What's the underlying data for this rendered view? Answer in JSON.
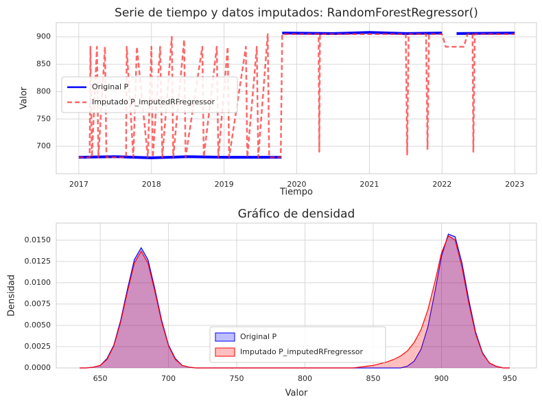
{
  "chart_data": [
    {
      "type": "line",
      "title": "Serie de tiempo y datos imputados: RandomForestRegressor()",
      "xlabel": "Tiempo",
      "ylabel": "Valor",
      "xlim": [
        2016.69,
        2023.3
      ],
      "xticks": [
        2017,
        2018,
        2019,
        2020,
        2021,
        2022,
        2023
      ],
      "ylim": [
        650,
        926
      ],
      "yticks": [
        700,
        750,
        800,
        850,
        900
      ],
      "grid": true,
      "legend": "center left",
      "series": [
        {
          "name": "Original P",
          "color": "#0000ff",
          "dash": "solid",
          "x": [
            2017.0,
            2017.5,
            2018.0,
            2018.5,
            2019.0,
            2019.79,
            2019.795,
            2019.8,
            2020.5,
            2021.0,
            2021.5,
            2022.0,
            2022.1,
            2022.2,
            2023.0
          ],
          "values": [
            680,
            681,
            679,
            681,
            680,
            680,
            null,
            907,
            906,
            908,
            906,
            907,
            null,
            906,
            907
          ]
        },
        {
          "name": "Imputado P_imputedRFregressor",
          "color": "#ff3333",
          "dash": "dashed",
          "x": [
            2017.0,
            2017.15,
            2017.16,
            2017.18,
            2017.25,
            2017.27,
            2017.36,
            2017.38,
            2017.65,
            2017.66,
            2017.75,
            2017.8,
            2017.95,
            2018.0,
            2018.02,
            2018.12,
            2018.15,
            2018.28,
            2018.3,
            2018.45,
            2018.47,
            2018.7,
            2018.72,
            2018.9,
            2018.92,
            2019.05,
            2019.07,
            2019.3,
            2019.32,
            2019.45,
            2019.47,
            2019.6,
            2019.62,
            2019.78,
            2019.8,
            2020.3,
            2020.31,
            2020.32,
            2021.5,
            2021.52,
            2021.54,
            2021.78,
            2021.8,
            2021.82,
            2022.0,
            2022.05,
            2022.3,
            2022.35,
            2022.42,
            2022.43,
            2022.45,
            2023.0
          ],
          "values": [
            680,
            680,
            882,
            680,
            882,
            680,
            882,
            680,
            680,
            882,
            680,
            882,
            680,
            882,
            680,
            882,
            680,
            900,
            680,
            895,
            680,
            882,
            680,
            882,
            680,
            882,
            680,
            882,
            680,
            882,
            680,
            905,
            680,
            680,
            905,
            905,
            690,
            905,
            905,
            685,
            905,
            905,
            695,
            905,
            905,
            882,
            882,
            905,
            905,
            690,
            905,
            905
          ]
        }
      ]
    },
    {
      "type": "density",
      "title": "Gráfico de densidad",
      "xlabel": "Valor",
      "ylabel": "Densidad",
      "xlim": [
        617.8,
        969.6
      ],
      "xticks": [
        650,
        700,
        750,
        800,
        850,
        900,
        950
      ],
      "ylim": [
        0,
        0.017
      ],
      "yticks": [
        {
          "value": 0,
          "label": "0.0000"
        },
        {
          "value": 0.0025,
          "label": "0.0025"
        },
        {
          "value": 0.005,
          "label": "0.0050"
        },
        {
          "value": 0.0075,
          "label": "0.0075"
        },
        {
          "value": 0.01,
          "label": "0.0100"
        },
        {
          "value": 0.0125,
          "label": "0.0125"
        },
        {
          "value": 0.015,
          "label": "0.0150"
        }
      ],
      "grid": true,
      "legend": "lower center",
      "x": [
        635,
        640,
        645,
        650,
        655,
        660,
        665,
        670,
        675,
        680,
        685,
        690,
        695,
        700,
        705,
        710,
        715,
        720,
        725,
        730,
        735,
        740,
        745,
        750,
        755,
        760,
        765,
        770,
        775,
        780,
        785,
        790,
        795,
        800,
        805,
        810,
        815,
        820,
        825,
        830,
        835,
        840,
        845,
        850,
        855,
        860,
        865,
        870,
        875,
        880,
        885,
        890,
        895,
        900,
        905,
        910,
        915,
        920,
        925,
        930,
        935,
        940,
        945,
        950
      ],
      "series": [
        {
          "name": "Original P",
          "color": "#0000ff",
          "values": [
            0,
            0,
            0.0001,
            0.0003,
            0.0011,
            0.0027,
            0.0056,
            0.0093,
            0.0127,
            0.0141,
            0.0127,
            0.0093,
            0.0056,
            0.0027,
            0.0011,
            0.0003,
            0.0001,
            0,
            0,
            0,
            0,
            0,
            0,
            0,
            0,
            0,
            0,
            0,
            0,
            0,
            0,
            0,
            0,
            0,
            0,
            0,
            0,
            0,
            0,
            0,
            0,
            0,
            0,
            0,
            0,
            0,
            0,
            0,
            0.0002,
            0.0008,
            0.0022,
            0.0048,
            0.0088,
            0.0131,
            0.0157,
            0.0154,
            0.0123,
            0.008,
            0.0042,
            0.0018,
            0.0006,
            0.0002,
            0,
            0
          ]
        },
        {
          "name": "Imputado P_imputedRFregressor",
          "color": "#ff0000",
          "values": [
            0,
            0,
            0.0001,
            0.0003,
            0.001,
            0.0026,
            0.0054,
            0.009,
            0.0123,
            0.0137,
            0.0123,
            0.009,
            0.0054,
            0.0026,
            0.001,
            0.0003,
            0.0001,
            0,
            0,
            0,
            0,
            0,
            0,
            0,
            0,
            0,
            0,
            0,
            0,
            0,
            0,
            0,
            0,
            0,
            0,
            0,
            0,
            0,
            0,
            0,
            0,
            0.0001,
            0.0002,
            0.0003,
            0.0005,
            0.0007,
            0.001,
            0.0014,
            0.002,
            0.003,
            0.0045,
            0.0068,
            0.01,
            0.0135,
            0.0155,
            0.015,
            0.0118,
            0.0076,
            0.004,
            0.0017,
            0.0006,
            0.0002,
            0,
            0
          ]
        }
      ]
    }
  ]
}
